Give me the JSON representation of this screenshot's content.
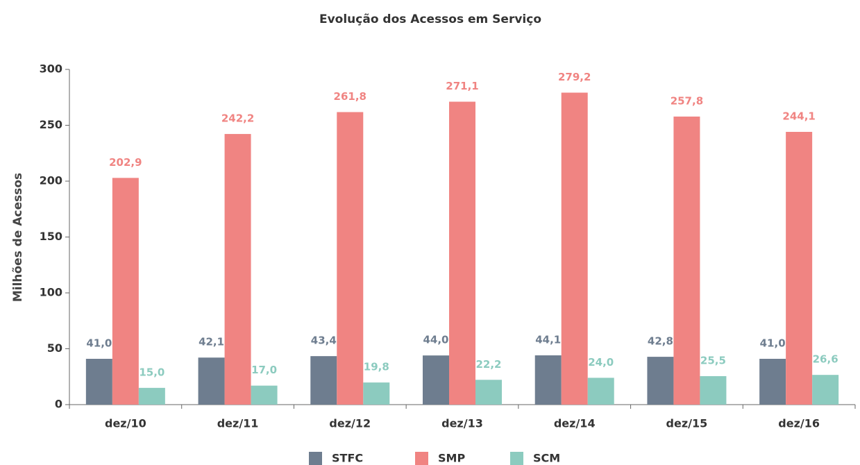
{
  "chart_data": {
    "type": "bar",
    "title": "Evolução dos Acessos em Serviço",
    "y_label": "Milhões de Acessos",
    "categories": [
      "dez/10",
      "dez/11",
      "dez/12",
      "dez/13",
      "dez/14",
      "dez/15",
      "dez/16"
    ],
    "series": [
      {
        "name": "STFC",
        "color": "#6e7d8f",
        "values": [
          41.0,
          42.1,
          43.4,
          44.0,
          44.1,
          42.8,
          41.0
        ],
        "value_labels": [
          "41,0",
          "42,1",
          "43,4",
          "44,0",
          "44,1",
          "42,8",
          "41,0"
        ]
      },
      {
        "name": "SMP",
        "color": "#f08482",
        "values": [
          202.9,
          242.2,
          261.8,
          271.1,
          279.2,
          257.8,
          244.1
        ],
        "value_labels": [
          "202,9",
          "242,2",
          "261,8",
          "271,1",
          "279,2",
          "257,8",
          "244,1"
        ]
      },
      {
        "name": "SCM",
        "color": "#8ccbbf",
        "values": [
          15.0,
          17.0,
          19.8,
          22.2,
          24.0,
          25.5,
          26.6
        ],
        "value_labels": [
          "15,0",
          "17,0",
          "19,8",
          "22,2",
          "24,0",
          "25,5",
          "26,6"
        ]
      }
    ],
    "ylim": [
      0,
      300
    ],
    "yticks": [
      0,
      50,
      100,
      150,
      200,
      250,
      300
    ],
    "grid": false,
    "legend": "bottom"
  }
}
